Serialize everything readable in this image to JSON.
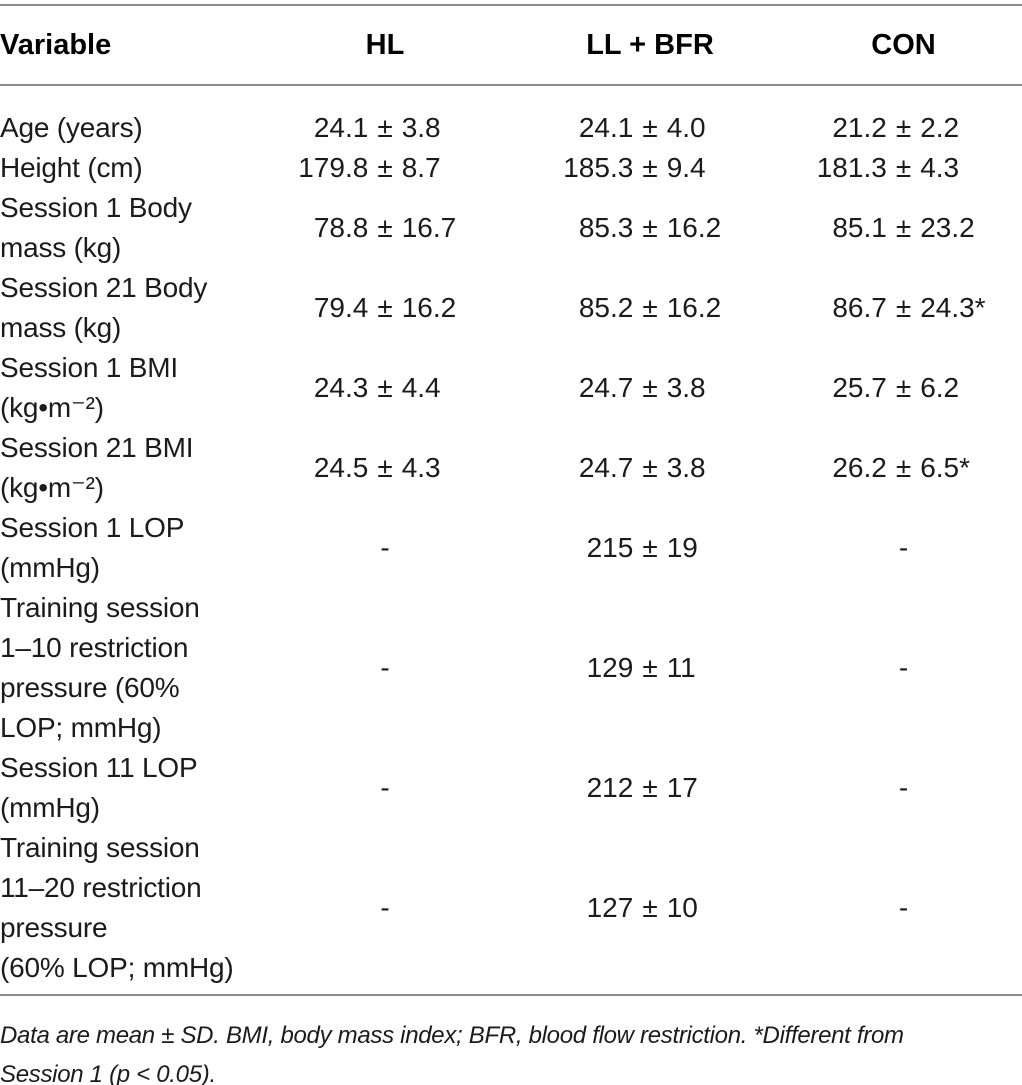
{
  "table": {
    "columns": {
      "variable": "Variable",
      "hl": "HL",
      "ll_bfr": "LL + BFR",
      "con": "CON"
    },
    "rows": [
      {
        "label": "Age (years)",
        "hl": {
          "m": "24.1",
          "pm": "±",
          "s": "3.8"
        },
        "ll": {
          "m": "24.1",
          "pm": "±",
          "s": "4.0"
        },
        "con": {
          "m": "21.2",
          "pm": "±",
          "s": "2.2"
        }
      },
      {
        "label": "Height (cm)",
        "hl": {
          "m": "179.8",
          "pm": "±",
          "s": "8.7"
        },
        "ll": {
          "m": "185.3",
          "pm": "±",
          "s": "9.4"
        },
        "con": {
          "m": "181.3",
          "pm": "±",
          "s": "4.3"
        }
      },
      {
        "label": "Session 1 Body\nmass (kg)",
        "hl": {
          "m": "78.8",
          "pm": "±",
          "s": "16.7"
        },
        "ll": {
          "m": "85.3",
          "pm": "±",
          "s": "16.2"
        },
        "con": {
          "m": "85.1",
          "pm": "±",
          "s": "23.2"
        }
      },
      {
        "label": "Session 21 Body\nmass (kg)",
        "hl": {
          "m": "79.4",
          "pm": "±",
          "s": "16.2"
        },
        "ll": {
          "m": "85.2",
          "pm": "±",
          "s": "16.2"
        },
        "con": {
          "m": "86.7",
          "pm": "±",
          "s": "24.3*"
        }
      },
      {
        "label": "Session 1 BMI\n(kg•m⁻²)",
        "hl": {
          "m": "24.3",
          "pm": "±",
          "s": "4.4"
        },
        "ll": {
          "m": "24.7",
          "pm": "±",
          "s": "3.8"
        },
        "con": {
          "m": "25.7",
          "pm": "±",
          "s": "6.2"
        }
      },
      {
        "label": "Session 21 BMI\n(kg•m⁻²)",
        "hl": {
          "m": "24.5",
          "pm": "±",
          "s": "4.3"
        },
        "ll": {
          "m": "24.7",
          "pm": "±",
          "s": "3.8"
        },
        "con": {
          "m": "26.2",
          "pm": "±",
          "s": "6.5*"
        }
      },
      {
        "label": "Session 1 LOP\n(mmHg)",
        "hl": {
          "m": "",
          "pm": "-",
          "s": ""
        },
        "ll": {
          "m": "215",
          "pm": "±",
          "s": "19"
        },
        "con": {
          "m": "",
          "pm": "-",
          "s": ""
        }
      },
      {
        "label": "Training session\n1–10 restriction\npressure (60%\nLOP; mmHg)",
        "hl": {
          "m": "",
          "pm": "-",
          "s": ""
        },
        "ll": {
          "m": "129",
          "pm": "±",
          "s": "11"
        },
        "con": {
          "m": "",
          "pm": "-",
          "s": ""
        }
      },
      {
        "label": "Session 11 LOP\n(mmHg)",
        "hl": {
          "m": "",
          "pm": "-",
          "s": ""
        },
        "ll": {
          "m": "212",
          "pm": "±",
          "s": "17"
        },
        "con": {
          "m": "",
          "pm": "-",
          "s": ""
        }
      },
      {
        "label": "Training session\n11–20 restriction\npressure\n(60% LOP; mmHg)",
        "hl": {
          "m": "",
          "pm": "-",
          "s": ""
        },
        "ll": {
          "m": "127",
          "pm": "±",
          "s": "10"
        },
        "con": {
          "m": "",
          "pm": "-",
          "s": ""
        }
      }
    ],
    "footnote": "Data are mean ± SD. BMI, body mass index; BFR, blood flow restriction. *Different from\nSession 1 (p < 0.05).",
    "rule_color": "#8b8b8b",
    "text_color": "#1b1b1b"
  }
}
